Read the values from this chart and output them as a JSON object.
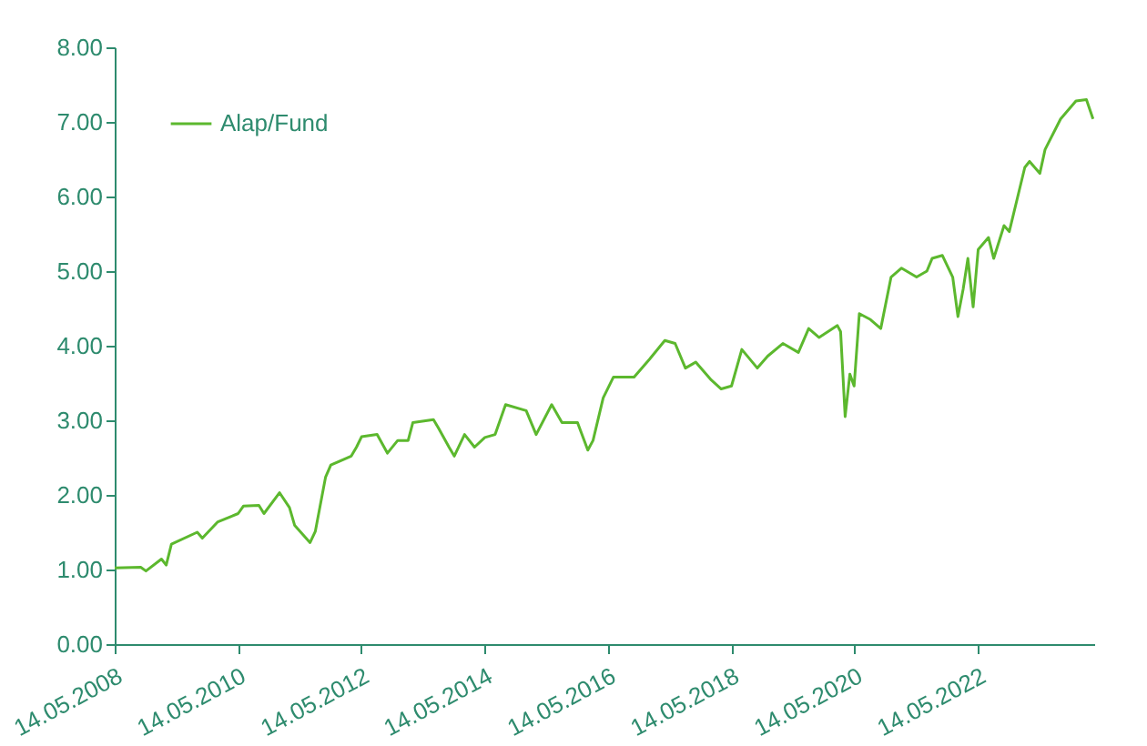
{
  "chart_data": {
    "type": "line",
    "x": [
      "2008-05-14",
      "2008-10-15",
      "2008-11-15",
      "2009-02-15",
      "2009-03-15",
      "2009-04-15",
      "2009-09-15",
      "2009-10-15",
      "2010-01-15",
      "2010-05-15",
      "2010-06-15",
      "2010-09-15",
      "2010-10-15",
      "2011-01-15",
      "2011-03-15",
      "2011-04-15",
      "2011-07-15",
      "2011-08-15",
      "2011-10-15",
      "2011-11-15",
      "2012-03-15",
      "2012-04-15",
      "2012-05-15",
      "2012-08-15",
      "2012-10-15",
      "2012-12-15",
      "2013-02-15",
      "2013-03-15",
      "2013-07-15",
      "2013-08-15",
      "2013-10-15",
      "2013-11-15",
      "2014-01-15",
      "2014-03-15",
      "2014-05-15",
      "2014-07-15",
      "2014-09-15",
      "2015-01-15",
      "2015-03-15",
      "2015-06-15",
      "2015-08-15",
      "2015-11-15",
      "2016-01-15",
      "2016-02-15",
      "2016-04-15",
      "2016-06-15",
      "2016-10-15",
      "2017-01-15",
      "2017-04-15",
      "2017-06-15",
      "2017-08-15",
      "2017-10-15",
      "2018-01-15",
      "2018-03-15",
      "2018-05-15",
      "2018-07-15",
      "2018-10-15",
      "2018-12-15",
      "2019-03-15",
      "2019-06-15",
      "2019-08-15",
      "2019-10-15",
      "2020-02-01",
      "2020-02-20",
      "2020-03-18",
      "2020-04-15",
      "2020-05-10",
      "2020-06-10",
      "2020-08-15",
      "2020-10-15",
      "2020-12-15",
      "2021-02-15",
      "2021-05-15",
      "2021-07-15",
      "2021-08-15",
      "2021-10-15",
      "2021-12-15",
      "2022-01-15",
      "2022-02-15",
      "2022-03-15",
      "2022-04-15",
      "2022-05-15",
      "2022-07-15",
      "2022-08-15",
      "2022-10-15",
      "2022-11-15",
      "2023-02-15",
      "2023-03-15",
      "2023-05-15",
      "2023-06-15",
      "2023-09-15",
      "2023-12-15",
      "2024-02-15",
      "2024-03-25"
    ],
    "series": [
      {
        "name": "Alap/Fund",
        "color": "#5cb82e",
        "values": [
          1.02,
          1.03,
          0.98,
          1.14,
          1.06,
          1.34,
          1.5,
          1.42,
          1.64,
          1.75,
          1.85,
          1.86,
          1.75,
          2.03,
          1.83,
          1.59,
          1.36,
          1.51,
          2.24,
          2.4,
          2.52,
          2.64,
          2.78,
          2.81,
          2.56,
          2.73,
          2.73,
          2.97,
          3.01,
          2.89,
          2.64,
          2.52,
          2.81,
          2.64,
          2.77,
          2.81,
          3.21,
          3.13,
          2.81,
          3.21,
          2.97,
          2.97,
          2.6,
          2.73,
          3.3,
          3.58,
          3.58,
          3.82,
          4.07,
          4.03,
          3.7,
          3.78,
          3.54,
          3.42,
          3.46,
          3.95,
          3.7,
          3.86,
          4.03,
          3.91,
          4.23,
          4.11,
          4.27,
          4.19,
          3.05,
          3.62,
          3.46,
          4.43,
          4.35,
          4.23,
          4.92,
          5.04,
          4.92,
          5.0,
          5.17,
          5.21,
          4.92,
          4.39,
          4.76,
          5.17,
          4.52,
          5.29,
          5.45,
          5.17,
          5.61,
          5.53,
          6.39,
          6.47,
          6.31,
          6.63,
          7.04,
          7.28,
          7.3,
          7.04
        ]
      }
    ],
    "xlim": [
      "2008-05-14",
      "2024-04-01"
    ],
    "xticks": [
      {
        "value": "2008-05-14",
        "label": "14.05.2008"
      },
      {
        "value": "2010-05-14",
        "label": "14.05.2010"
      },
      {
        "value": "2012-05-14",
        "label": "14.05.2012"
      },
      {
        "value": "2014-05-14",
        "label": "14.05.2014"
      },
      {
        "value": "2016-05-14",
        "label": "14.05.2016"
      },
      {
        "value": "2018-05-14",
        "label": "14.05.2018"
      },
      {
        "value": "2020-05-14",
        "label": "14.05.2020"
      },
      {
        "value": "2022-05-14",
        "label": "14.05.2022"
      }
    ],
    "ylim": [
      0,
      8
    ],
    "yticks": [
      {
        "value": 0,
        "label": "0.00"
      },
      {
        "value": 1,
        "label": "1.00"
      },
      {
        "value": 2,
        "label": "2.00"
      },
      {
        "value": 3,
        "label": "3.00"
      },
      {
        "value": 4,
        "label": "4.00"
      },
      {
        "value": 5,
        "label": "5.00"
      },
      {
        "value": 6,
        "label": "6.00"
      },
      {
        "value": 7,
        "label": "7.00"
      },
      {
        "value": 8,
        "label": "8.00"
      }
    ],
    "grid": false,
    "legend": "top left",
    "marker": "none",
    "line_style": "solid"
  }
}
